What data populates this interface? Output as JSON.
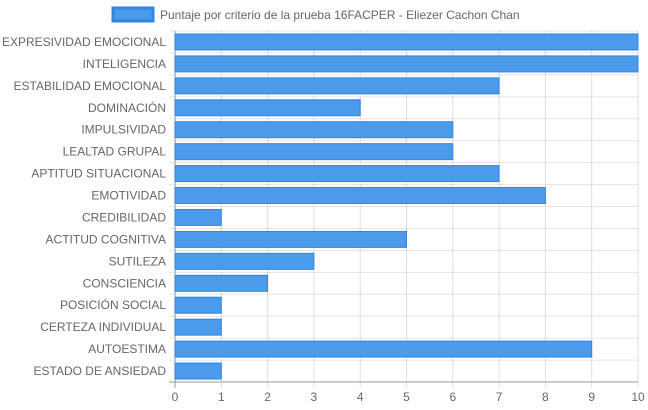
{
  "chart_data": {
    "type": "bar",
    "orientation": "horizontal",
    "title": "",
    "xlabel": "",
    "ylabel": "",
    "xlim": [
      0,
      10
    ],
    "x_ticks": [
      "0",
      "1",
      "2",
      "3",
      "4",
      "5",
      "6",
      "7",
      "8",
      "9",
      "10"
    ],
    "grid": true,
    "legend_position": "top-center",
    "categories": [
      "EXPRESIVIDAD EMOCIONAL",
      "INTELIGENCIA",
      "ESTABILIDAD EMOCIONAL",
      "DOMINACIÓN",
      "IMPULSIVIDAD",
      "LEALTAD GRUPAL",
      "APTITUD SITUACIONAL",
      "EMOTIVIDAD",
      "CREDIBILIDAD",
      "ACTITUD COGNITIVA",
      "SUTILEZA",
      "CONSCIENCIA",
      "POSICIÓN SOCIAL",
      "CERTEZA INDIVIDUAL",
      "AUTOESTIMA",
      "ESTADO DE ANSIEDAD"
    ],
    "series": [
      {
        "name": "Puntaje por criterio de la prueba 16FACPER - Eliezer Cachon Chan",
        "values": [
          10,
          10,
          7,
          4,
          6,
          6,
          7,
          8,
          1,
          5,
          3,
          2,
          1,
          1,
          9,
          1
        ],
        "color": "#4b9bea",
        "border_color": "#2f86e2"
      }
    ]
  }
}
